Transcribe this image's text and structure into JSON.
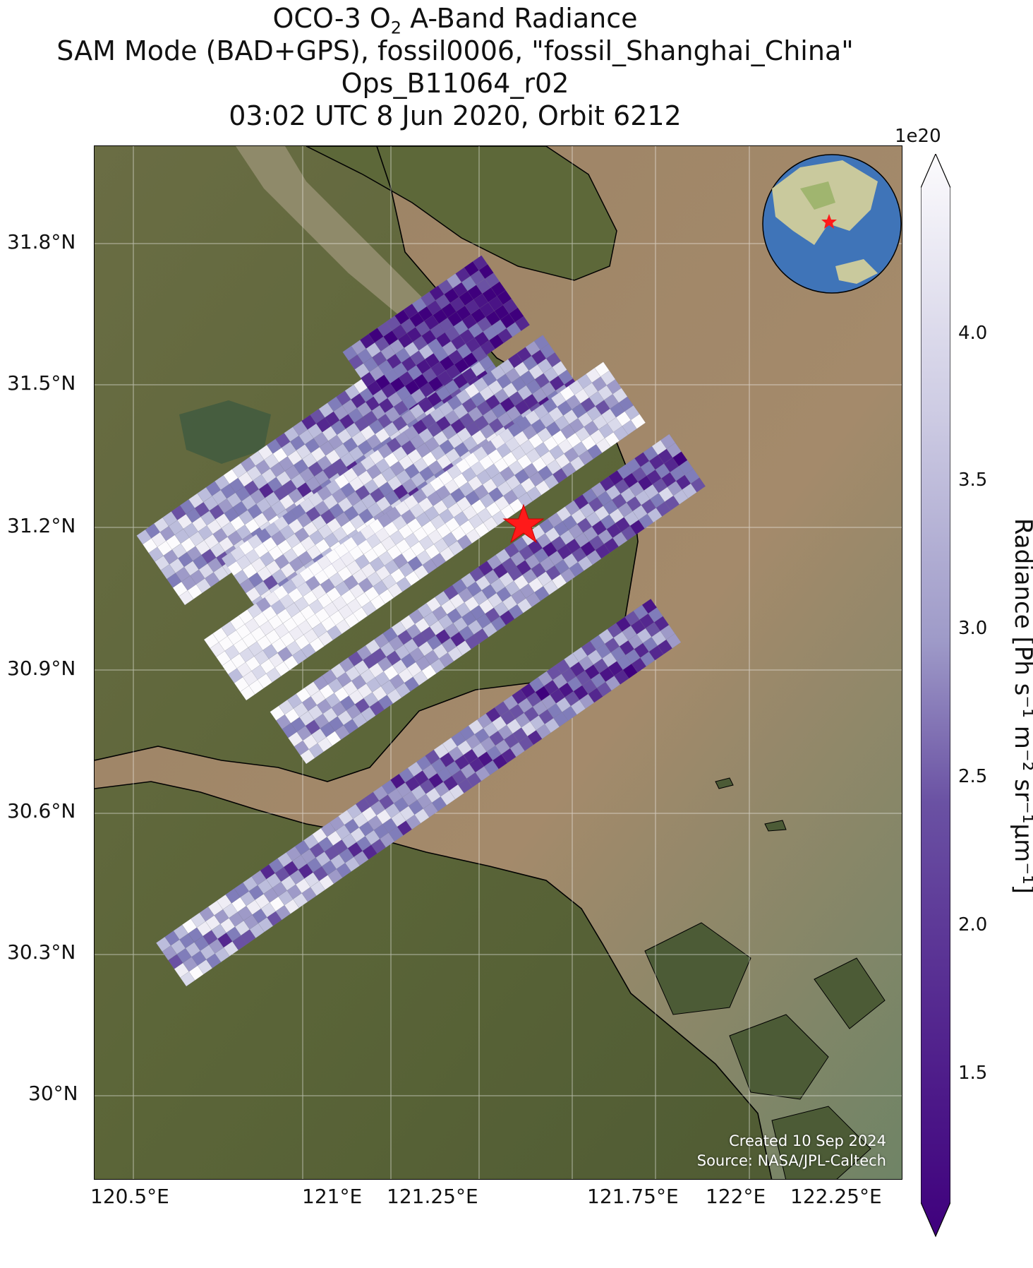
{
  "title": {
    "line1_prefix": "OCO-3 O",
    "line1_sub": "2",
    "line1_suffix": " A-Band Radiance",
    "line2": "SAM Mode (BAD+GPS), fossil0006, \"fossil_Shanghai_China\"",
    "line3": "Ops_B11064_r02",
    "line4": "03:02 UTC 8 Jun 2020, Orbit 6212"
  },
  "map": {
    "x_ticks": [
      "120.5°E",
      "121°E",
      "121.25°E",
      "121.75°E",
      "122°E",
      "122.25°E"
    ],
    "y_ticks": [
      "31.8°N",
      "31.5°N",
      "31.2°N",
      "30.9°N",
      "30.6°N",
      "30.3°N",
      "30°N"
    ],
    "target_marker": "red-star",
    "credits": {
      "created": "Created 10 Sep 2024",
      "source": "Source: NASA/JPL-Caltech"
    },
    "colors": {
      "land": "#5f6b3c",
      "water": "#9a8466",
      "coast": "#000000",
      "grid": "#ffffff"
    }
  },
  "colorbar": {
    "exponent": "1e20",
    "label": "Radiance [Ph s⁻¹ m⁻² sr⁻¹µm⁻¹]",
    "ticks": [
      "1.5",
      "2.0",
      "2.5",
      "3.0",
      "3.5",
      "4.0"
    ],
    "colormap": "Purples_r",
    "color_low": "#3f007d",
    "color_high": "#fcfbfd"
  },
  "inset_globe": {
    "marker": "red-star"
  }
}
